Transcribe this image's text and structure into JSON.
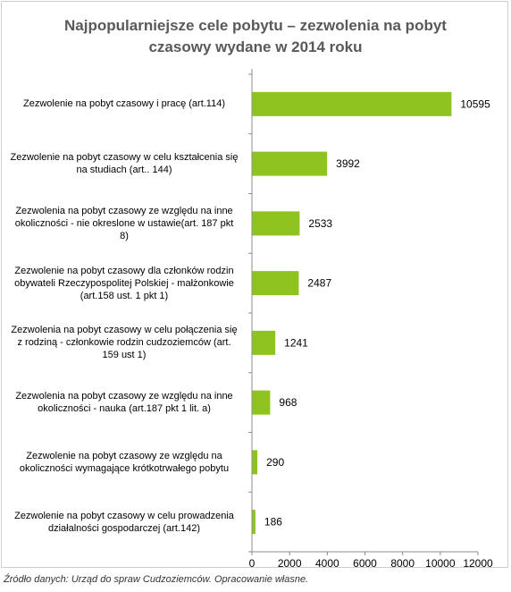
{
  "chart_data": {
    "type": "bar",
    "orientation": "horizontal",
    "title_lines": [
      "Najpopularniejsze cele pobytu – zezwolenia na pobyt",
      "czasowy wydane w 2014 roku"
    ],
    "categories": [
      "Zezwolenie na pobyt czasowy i pracę (art.114)",
      "Zezwolenie na pobyt czasowy w celu kształcenia się na studiach (art.. 144)",
      "Zezwolenia na pobyt czasowy ze względu na inne okoliczności - nie okreslone w ustawie(art. 187 pkt 8)",
      "Zezwolenie na pobyt czasowy dla członków rodzin obywateli Rzeczypospolitej Polskiej - małżonkowie (art.158 ust. 1 pkt 1)",
      "Zezwolenia na pobyt czasowy w celu połączenia się z rodziną - członkowie rodzin cudzoziemców (art. 159 ust 1)",
      "Zezwolenia na pobyt czasowy ze względu na inne okoliczności - nauka (art.187 pkt 1 lit. a)",
      "Zezwolenie na pobyt czasowy ze względu na okoliczności wymagające krótkotrwałego pobytu",
      "Zezwolenie na pobyt czasowy w celu prowadzenia działalności gospodarczej (art.142)"
    ],
    "category_lines": [
      [
        "Zezwolenie na pobyt czasowy i pracę (art.114)"
      ],
      [
        "Zezwolenie na pobyt czasowy w celu kształcenia się",
        "na studiach (art.. 144)"
      ],
      [
        "Zezwolenia na pobyt czasowy ze względu na inne",
        "okoliczności - nie okreslone w ustawie(art. 187 pkt",
        "8)"
      ],
      [
        "Zezwolenie na pobyt czasowy dla członków rodzin",
        "obywateli Rzeczypospolitej Polskiej - małżonkowie",
        "(art.158 ust. 1 pkt 1)"
      ],
      [
        "Zezwolenia na pobyt czasowy w celu połączenia się",
        "z rodziną - członkowie rodzin cudzoziemców (art.",
        "159 ust 1)"
      ],
      [
        "Zezwolenia na pobyt czasowy ze względu na inne",
        "okoliczności - nauka (art.187 pkt 1 lit. a)"
      ],
      [
        "Zezwolenie na pobyt czasowy ze względu na",
        "okoliczności wymagające krótkotrwałego pobytu"
      ],
      [
        "Zezwolenie na pobyt czasowy w celu prowadzenia",
        "działalności gospodarczej (art.142)"
      ]
    ],
    "values": [
      10595,
      3992,
      2533,
      2487,
      1241,
      968,
      290,
      186
    ],
    "data_labels": [
      "10595",
      "3992",
      "2533",
      "2487",
      "1241",
      "968",
      "290",
      "186"
    ],
    "xlim": [
      0,
      12000
    ],
    "xticks": [
      0,
      2000,
      4000,
      6000,
      8000,
      10000,
      12000
    ],
    "xtick_labels": [
      "0",
      "2000",
      "4000",
      "6000",
      "8000",
      "10000",
      "12000"
    ],
    "bar_color": "#8fc31f",
    "axis_color": "#8c8c8c",
    "grid": false,
    "legend": "none"
  },
  "source": "Źródło danych: Urząd do spraw Cudzoziemców. Opracowanie własne."
}
